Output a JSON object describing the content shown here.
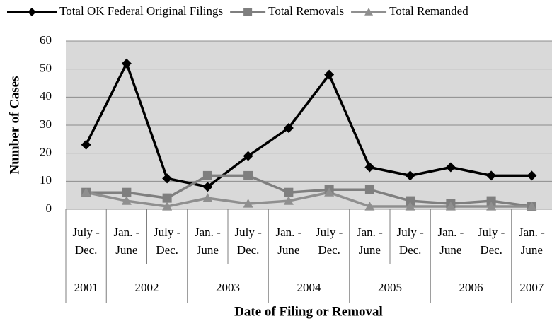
{
  "chart_data": {
    "type": "line",
    "x_axis_label": "Date of Filing or Removal",
    "y_axis_label": "Number of Cases",
    "groups": [
      {
        "label": "2001",
        "categories": [
          [
            "July -",
            "Dec."
          ]
        ]
      },
      {
        "label": "2002",
        "categories": [
          [
            "Jan. -",
            "June"
          ],
          [
            "July -",
            "Dec."
          ]
        ]
      },
      {
        "label": "2003",
        "categories": [
          [
            "Jan. -",
            "June"
          ],
          [
            "July -",
            "Dec."
          ]
        ]
      },
      {
        "label": "2004",
        "categories": [
          [
            "Jan. -",
            "June"
          ],
          [
            "July -",
            "Dec."
          ]
        ]
      },
      {
        "label": "2005",
        "categories": [
          [
            "Jan. -",
            "June"
          ],
          [
            "July -",
            "Dec."
          ]
        ]
      },
      {
        "label": "2006",
        "categories": [
          [
            "Jan. -",
            "June"
          ],
          [
            "July -",
            "Dec."
          ]
        ]
      },
      {
        "label": "2007",
        "categories": [
          [
            "Jan. -",
            "June"
          ]
        ]
      }
    ],
    "series": [
      {
        "name": "Total OK Federal Original Filings",
        "color": "#000000",
        "marker": "diamond",
        "values": [
          23,
          52,
          11,
          8,
          19,
          29,
          48,
          15,
          12,
          15,
          12,
          12
        ]
      },
      {
        "name": "Total Removals",
        "color": "#7f7f7f",
        "marker": "square",
        "values": [
          6,
          6,
          4,
          12,
          12,
          6,
          7,
          7,
          3,
          2,
          3,
          1
        ]
      },
      {
        "name": "Total Remanded",
        "color": "#8f8f8f",
        "marker": "triangle",
        "values": [
          6,
          3,
          1,
          4,
          2,
          3,
          6,
          1,
          1,
          1,
          1,
          1
        ]
      }
    ],
    "ylim": [
      0,
      60
    ],
    "yticks": [
      0,
      10,
      20,
      30,
      40,
      50,
      60
    ],
    "grid": true,
    "legend": "top"
  }
}
